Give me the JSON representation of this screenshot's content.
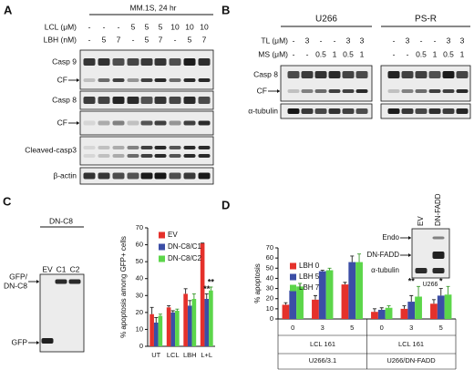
{
  "panel_a": {
    "letter": "A",
    "header": "MM.1S, 24 hr",
    "conditions": [
      {
        "label": "LCL (μM)",
        "lanes": [
          "-",
          "-",
          "-",
          "5",
          "5",
          "5",
          "10",
          "10",
          "10"
        ]
      },
      {
        "label": "LBH (nM)",
        "lanes": [
          "-",
          "5",
          "7",
          "-",
          "5",
          "7",
          "-",
          "5",
          "7"
        ]
      }
    ],
    "rows": [
      "Casp 9",
      "CF",
      "Casp 8",
      "CF",
      "Cleaved-casp3",
      "β-actin"
    ]
  },
  "panel_b": {
    "letter": "B",
    "groups": [
      {
        "name": "U266",
        "conditions": [
          {
            "label": "TL (μM)",
            "lanes": [
              "-",
              "3",
              "-",
              "-",
              "3",
              "3"
            ]
          },
          {
            "label": "MS (μM)",
            "lanes": [
              "-",
              "-",
              "0.5",
              "1",
              "0.5",
              "1"
            ]
          }
        ]
      },
      {
        "name": "PS-R",
        "conditions": [
          {
            "label": "TL (μM)",
            "lanes": [
              "-",
              "3",
              "-",
              "-",
              "3",
              "3"
            ]
          },
          {
            "label": "MS (μM)",
            "lanes": [
              "-",
              "-",
              "0.5",
              "1",
              "0.5",
              "1"
            ]
          }
        ]
      }
    ],
    "rows": [
      "Casp 8",
      "CF",
      "α-tubulin"
    ]
  },
  "panel_c": {
    "letter": "C",
    "blot": {
      "title": "DN-C8",
      "lanes": [
        "EV",
        "C1",
        "C2"
      ],
      "rows": [
        [
          "GFP/",
          "DN-C8"
        ],
        [
          "GFP"
        ]
      ]
    },
    "chart": {
      "type": "bar",
      "ylabel": "% apoptosis among GFP+ cells",
      "categories": [
        "UT",
        "LCL",
        "LBH",
        "L+L"
      ],
      "series": [
        {
          "name": "EV",
          "color": "#e5312b",
          "values": [
            19,
            23,
            31,
            61
          ],
          "errors": [
            4,
            1,
            3,
            0
          ]
        },
        {
          "name": "DN-C8/C1",
          "color": "#3b4ea6",
          "values": [
            14,
            20,
            24,
            28
          ],
          "errors": [
            3,
            1,
            3,
            3
          ]
        },
        {
          "name": "DN-C8/C2",
          "color": "#5cd64a",
          "values": [
            18,
            21,
            28,
            33
          ],
          "errors": [
            1,
            1,
            3,
            2
          ]
        }
      ],
      "ylim": [
        0,
        70
      ],
      "yticks": [
        0,
        10,
        20,
        30,
        40,
        50,
        60,
        70
      ],
      "annotations": [
        "**",
        "**"
      ]
    }
  },
  "panel_d": {
    "letter": "D",
    "chart": {
      "type": "bar",
      "ylabel": "% apoptosis",
      "categories": [
        "0",
        "3",
        "5",
        "0",
        "3",
        "5"
      ],
      "groups": [
        {
          "xlabel": "LCL 161",
          "name": "U266/3.1"
        },
        {
          "xlabel": "LCL 161",
          "name": "U266/DN-FADD"
        }
      ],
      "series": [
        {
          "name": "LBH 0",
          "color": "#e5312b",
          "values": [
            14,
            19,
            34,
            7,
            10,
            15
          ],
          "errors": [
            2,
            4,
            2,
            3,
            3,
            4
          ]
        },
        {
          "name": "LBH 5",
          "color": "#3b4ea6",
          "values": [
            28,
            47,
            56,
            9,
            17,
            23
          ],
          "errors": [
            1,
            1,
            6,
            2,
            6,
            7
          ]
        },
        {
          "name": "LBH 7",
          "color": "#5cd64a",
          "values": [
            32,
            48,
            56,
            11,
            22,
            24
          ],
          "errors": [
            3,
            2,
            8,
            2,
            10,
            8
          ]
        }
      ],
      "ylim": [
        0,
        70
      ],
      "yticks": [
        0,
        10,
        20,
        30,
        40,
        50,
        60,
        70
      ],
      "annotations": [
        "**",
        "*"
      ]
    },
    "inset": {
      "rows": [
        "Endo",
        "DN-FADD",
        "α-tubulin"
      ],
      "lanes": [
        "EV",
        "DN-FADD"
      ],
      "cell": "U266"
    }
  }
}
